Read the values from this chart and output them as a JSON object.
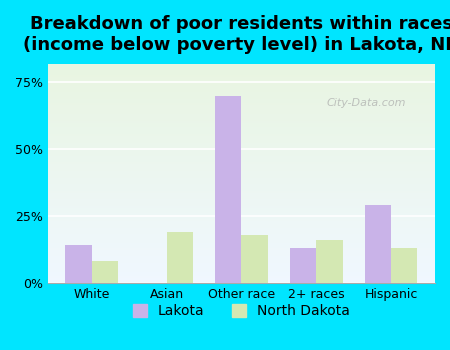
{
  "title": "Breakdown of poor residents within races\n(income below poverty level) in Lakota, ND",
  "categories": [
    "White",
    "Asian",
    "Other race",
    "2+ races",
    "Hispanic"
  ],
  "lakota_values": [
    14,
    0,
    70,
    13,
    29
  ],
  "nd_values": [
    8,
    19,
    18,
    16,
    13
  ],
  "lakota_color": "#c9b3e8",
  "nd_color": "#d4e8b3",
  "bar_width": 0.35,
  "yticks": [
    0,
    25,
    50,
    75
  ],
  "ytick_labels": [
    "0%",
    "25%",
    "50%",
    "75%"
  ],
  "ylim": [
    0,
    82
  ],
  "background_outer": "#00e5ff",
  "background_inner_top": "#f0f8ff",
  "background_inner_bottom": "#e8f5e0",
  "title_fontsize": 13,
  "legend_fontsize": 10,
  "tick_fontsize": 9
}
